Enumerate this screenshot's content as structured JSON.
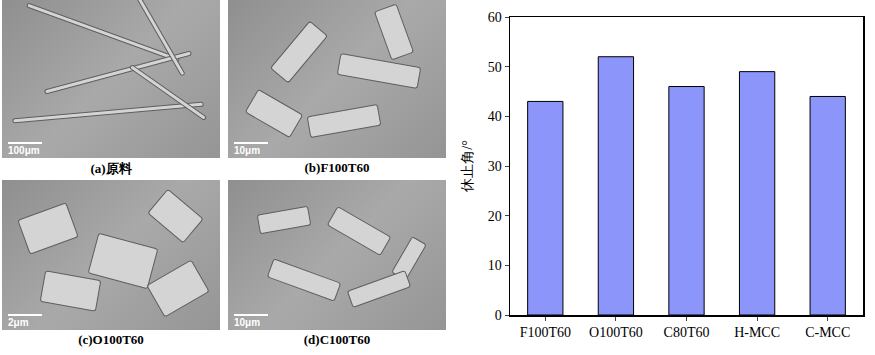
{
  "micrographs": [
    {
      "caption": "(a)原料",
      "scale_bar": "100μm"
    },
    {
      "caption": "(b)F100T60",
      "scale_bar": "10μm"
    },
    {
      "caption": "(c)O100T60",
      "scale_bar": "2μm"
    },
    {
      "caption": "(d)C100T60",
      "scale_bar": "10μm"
    }
  ],
  "chart_data": {
    "type": "bar",
    "y_label": "休止角/°",
    "categories": [
      "F100T60",
      "O100T60",
      "C80T60",
      "H-MCC",
      "C-MCC"
    ],
    "values": [
      43,
      52,
      46,
      49,
      44
    ],
    "color": "#8c96fa",
    "ylim": [
      0,
      60
    ],
    "yticks": [
      0,
      10,
      20,
      30,
      40,
      50,
      60
    ],
    "grid": false
  }
}
